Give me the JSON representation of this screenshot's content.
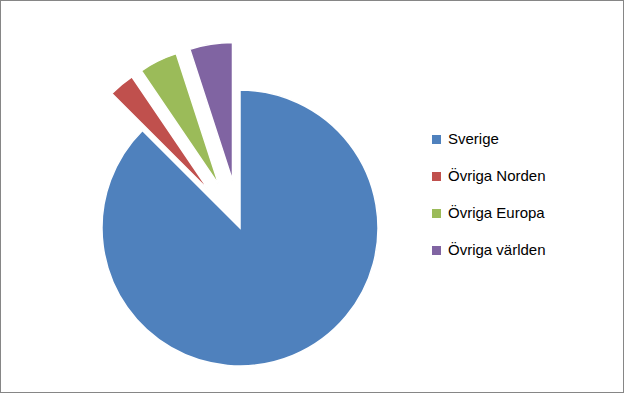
{
  "chart_data": {
    "type": "pie",
    "categories": [
      "Sverige",
      "Övriga Norden",
      "Övriga Europa",
      "Övriga världen"
    ],
    "values": [
      87.5,
      3,
      4.5,
      5
    ],
    "colors": [
      "#4f81bd",
      "#c0504d",
      "#9bbb59",
      "#8064a2"
    ],
    "legend": "right"
  }
}
